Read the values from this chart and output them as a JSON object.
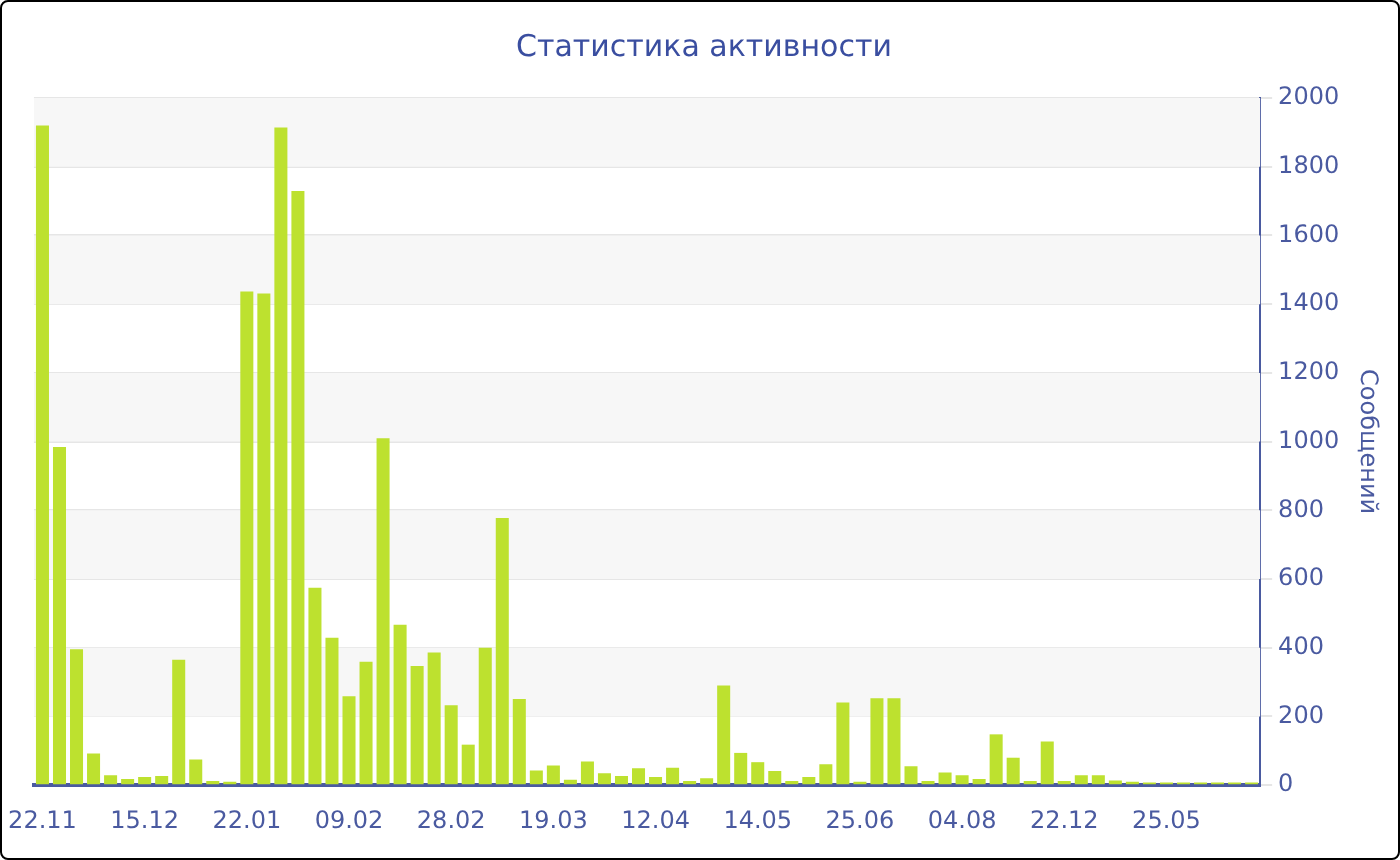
{
  "chart_data": {
    "type": "bar",
    "title": "Статистика активности",
    "ylabel": "Сообщений",
    "categories": [
      "22.11",
      null,
      null,
      null,
      null,
      null,
      "15.12",
      null,
      null,
      null,
      null,
      null,
      "22.01",
      null,
      null,
      null,
      null,
      null,
      "09.02",
      null,
      null,
      null,
      null,
      null,
      "28.02",
      null,
      null,
      null,
      null,
      null,
      "19.03",
      null,
      null,
      null,
      null,
      null,
      "12.04",
      null,
      null,
      null,
      null,
      null,
      "14.05",
      null,
      null,
      null,
      null,
      null,
      "25.06",
      null,
      null,
      null,
      null,
      null,
      "04.08",
      null,
      null,
      null,
      null,
      null,
      "22.12",
      null,
      null,
      null,
      null,
      null,
      "25.05",
      null,
      null,
      null,
      null,
      null
    ],
    "values": [
      1920,
      984,
      396,
      92,
      29,
      18,
      24,
      27,
      365,
      75,
      12,
      10,
      1437,
      1431,
      1914,
      1729,
      575,
      429,
      259,
      359,
      1010,
      467,
      347,
      386,
      233,
      118,
      400,
      778,
      251,
      43,
      57,
      16,
      69,
      35,
      27,
      49,
      24,
      51,
      12,
      20,
      290,
      94,
      67,
      41,
      12,
      24,
      61,
      241,
      10,
      253,
      253,
      55,
      12,
      37,
      29,
      18,
      148,
      80,
      12,
      127,
      12,
      29,
      29,
      14,
      10,
      8,
      8,
      8,
      8,
      8,
      8,
      8
    ],
    "color": "#bde12f",
    "ylim": [
      0,
      2000
    ],
    "yticks": [
      0,
      200,
      400,
      600,
      800,
      1000,
      1200,
      1400,
      1600,
      1800,
      2000
    ],
    "grid": true
  }
}
